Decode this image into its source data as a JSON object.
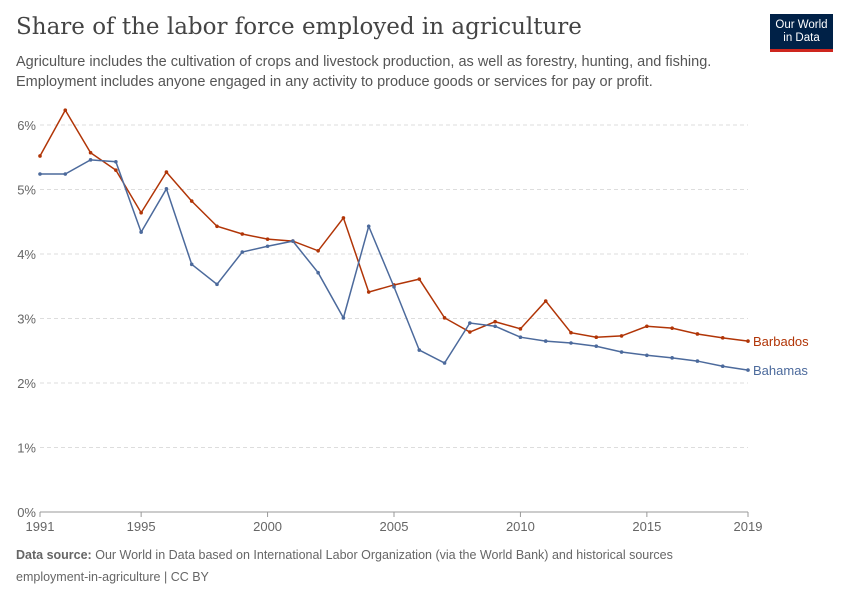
{
  "title": "Share of the labor force employed in agriculture",
  "subtitle": "Agriculture includes the cultivation of crops and livestock production, as well as forestry, hunting, and fishing. Employment includes anyone engaged in any activity to produce goods or services for pay or profit.",
  "logo": "Our World in Data",
  "footer": {
    "source_label": "Data source:",
    "source": "Our World in Data based on International Labor Organization (via the World Bank) and historical sources",
    "slug": "employment-in-agriculture | CC BY"
  },
  "chart_data": {
    "type": "line",
    "x": [
      1991,
      1992,
      1993,
      1994,
      1995,
      1996,
      1997,
      1998,
      1999,
      2000,
      2001,
      2002,
      2003,
      2004,
      2005,
      2006,
      2007,
      2008,
      2009,
      2010,
      2011,
      2012,
      2013,
      2014,
      2015,
      2016,
      2017,
      2018,
      2019
    ],
    "series": [
      {
        "name": "Barbados",
        "color": "#b13507",
        "values": [
          5.52,
          6.23,
          5.57,
          5.3,
          4.64,
          5.27,
          4.82,
          4.43,
          4.31,
          4.23,
          4.2,
          4.05,
          4.56,
          3.41,
          3.52,
          3.61,
          3.01,
          2.79,
          2.95,
          2.84,
          3.27,
          2.78,
          2.71,
          2.73,
          2.88,
          2.85,
          2.76,
          2.7,
          2.65
        ]
      },
      {
        "name": "Bahamas",
        "color": "#4c6a9c",
        "values": [
          5.24,
          5.24,
          5.46,
          5.43,
          4.34,
          5.01,
          3.84,
          3.53,
          4.03,
          4.12,
          4.2,
          3.71,
          3.01,
          4.43,
          3.49,
          2.51,
          2.31,
          2.93,
          2.88,
          2.71,
          2.65,
          2.62,
          2.57,
          2.48,
          2.43,
          2.39,
          2.34,
          2.26,
          2.2
        ]
      }
    ],
    "ylim": [
      0,
      6
    ],
    "yticks": [
      "0%",
      "1%",
      "2%",
      "3%",
      "4%",
      "5%",
      "6%"
    ],
    "xticks": [
      "1991",
      "1995",
      "2000",
      "2005",
      "2010",
      "2015",
      "2019"
    ],
    "grid": true,
    "legend": "right-end labels"
  }
}
